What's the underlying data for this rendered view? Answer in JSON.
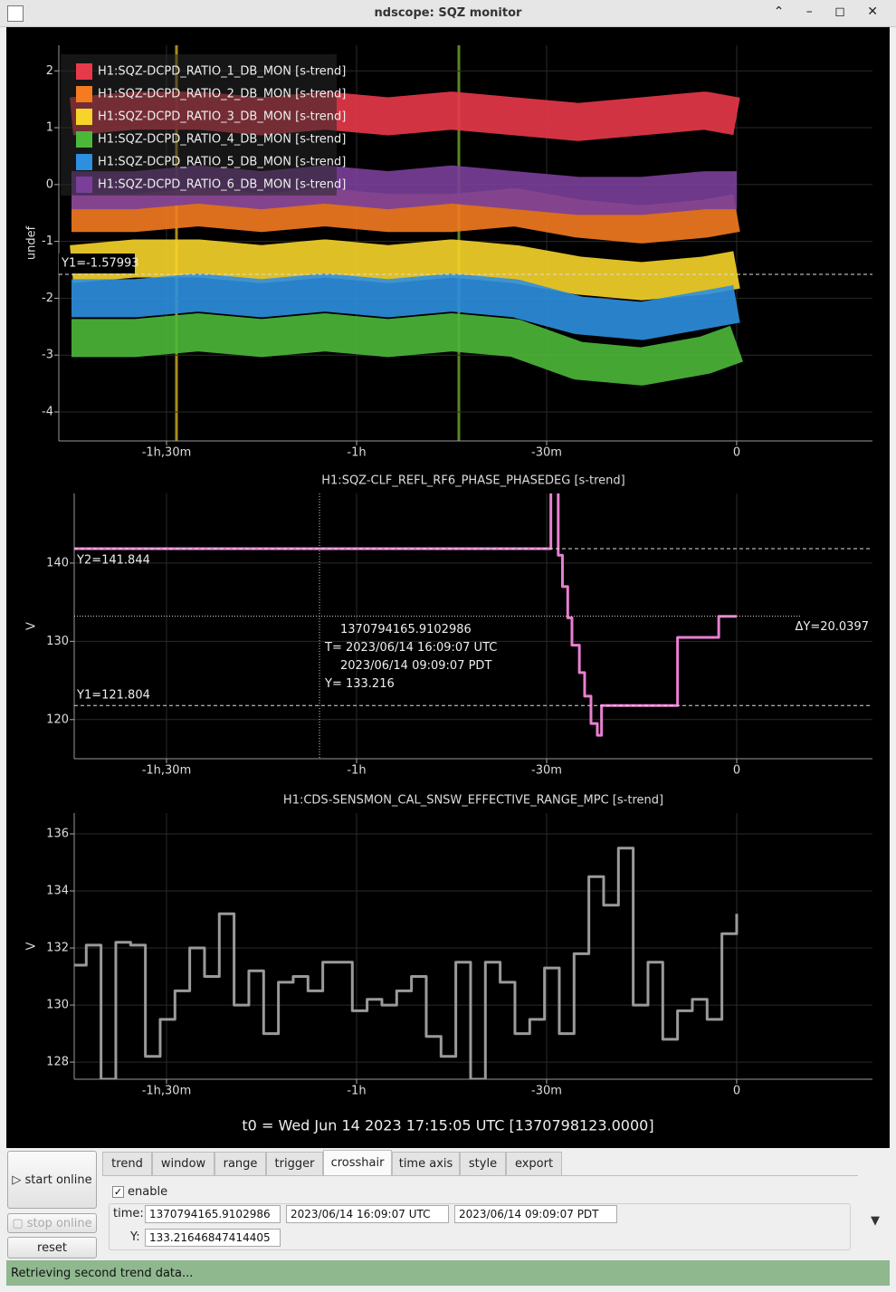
{
  "window": {
    "title": "ndscope: SQZ monitor"
  },
  "chart_data": [
    {
      "type": "line",
      "ylabel": "undef",
      "xlim": [
        -6420,
        1286
      ],
      "ylim": [
        -4.51,
        2.45
      ],
      "xticks": [
        {
          "value": -5400,
          "label": "-1h,30m"
        },
        {
          "value": -3600,
          "label": "-1h"
        },
        {
          "value": -1800,
          "label": "-30m"
        },
        0
      ],
      "yticks": [
        -4,
        -3,
        -2,
        -1,
        0,
        1,
        2
      ],
      "grid": true,
      "legend": "top-left",
      "x": [
        -6300,
        -5700,
        -5100,
        -4500,
        -3900,
        -3300,
        -2700,
        -2100,
        -1500,
        -900,
        -300,
        0
      ],
      "series": [
        {
          "name": "H1:SQZ-DCPD_RATIO_1_DB_MON [s-trend]",
          "color": "#e8394a",
          "values": [
            1.2,
            1.3,
            1.3,
            1.2,
            1.3,
            1.2,
            1.3,
            1.2,
            1.1,
            1.2,
            1.3,
            1.2
          ]
        },
        {
          "name": "H1:SQZ-DCPD_RATIO_2_DB_MON [s-trend]",
          "color": "#f47b20",
          "values": [
            -0.5,
            -0.5,
            -0.4,
            -0.5,
            -0.4,
            -0.5,
            -0.5,
            -0.4,
            -0.6,
            -0.7,
            -0.6,
            -0.5
          ]
        },
        {
          "name": "H1:SQZ-DCPD_RATIO_3_DB_MON [s-trend]",
          "color": "#f7d42a",
          "values": [
            -1.4,
            -1.3,
            -1.3,
            -1.4,
            -1.3,
            -1.4,
            -1.3,
            -1.4,
            -1.6,
            -1.7,
            -1.6,
            -1.5
          ]
        },
        {
          "name": "H1:SQZ-DCPD_RATIO_4_DB_MON [s-trend]",
          "color": "#4cb83a",
          "values": [
            -2.7,
            -2.7,
            -2.6,
            -2.7,
            -2.6,
            -2.7,
            -2.6,
            -2.7,
            -3.1,
            -3.2,
            -3.0,
            -2.8
          ]
        },
        {
          "name": "H1:SQZ-DCPD_RATIO_5_DB_MON [s-trend]",
          "color": "#2d8fe0",
          "values": [
            -2.0,
            -2.0,
            -1.9,
            -2.0,
            -1.9,
            -2.0,
            -1.9,
            -2.0,
            -2.3,
            -2.4,
            -2.2,
            -2.1
          ]
        },
        {
          "name": "H1:SQZ-DCPD_RATIO_6_DB_MON [s-trend]",
          "color": "#7a3f9a",
          "values": [
            -0.1,
            -0.1,
            0.0,
            -0.1,
            0.0,
            -0.1,
            0.0,
            -0.1,
            -0.2,
            -0.2,
            -0.1,
            -0.1
          ]
        }
      ],
      "cursors": [
        {
          "label": "Y1=-1.57993",
          "y": -1.57993
        }
      ]
    },
    {
      "type": "line",
      "title": "H1:SQZ-CLF_REFL_RF6_PHASE_PHASEDEG [s-trend]",
      "ylabel": "V",
      "xlim": [
        -6274,
        1286
      ],
      "ylim": [
        115.0,
        148.9
      ],
      "xticks": [
        {
          "value": -5400,
          "label": "-1h,30m"
        },
        {
          "value": -3600,
          "label": "-1h"
        },
        {
          "value": -1800,
          "label": "-30m"
        },
        0
      ],
      "yticks": [
        120,
        130,
        140
      ],
      "grid": true,
      "step": true,
      "x": [
        -6300,
        -1760,
        -1720,
        -1690,
        -1650,
        -1600,
        -1560,
        -1490,
        -1440,
        -1380,
        -1320,
        -1280,
        -560,
        -170,
        0
      ],
      "series": [
        {
          "name": "H1:SQZ-CLF_REFL_RF6_PHASE_PHASEDEG [s-trend]",
          "color": "#e87fd0",
          "values": [
            141.844,
            152,
            150,
            141,
            137,
            133,
            129.5,
            126,
            123,
            119.5,
            118,
            121.8,
            130.5,
            133.2,
            133.2
          ]
        }
      ],
      "cursors": [
        {
          "label": "Y2=141.844",
          "y": 141.844
        },
        {
          "label": "Y1=121.804",
          "y": 121.804
        }
      ],
      "delta": "ΔY=20.0397",
      "crosshair": {
        "x": -3951,
        "y": 133.216,
        "lines": [
          "1370794165.9102986",
          "T= 2023/06/14 16:09:07 UTC",
          "2023/06/14 09:09:07 PDT",
          "Y= 133.216"
        ]
      }
    },
    {
      "type": "line",
      "title": "H1:CDS-SENSMON_CAL_SNSW_EFFECTIVE_RANGE_MPC [s-trend]",
      "ylabel": "V",
      "xlim": [
        -6274,
        1286
      ],
      "ylim": [
        127.4,
        136.73
      ],
      "xticks": [
        {
          "value": -5400,
          "label": "-1h,30m"
        },
        {
          "value": -3600,
          "label": "-1h"
        },
        {
          "value": -1800,
          "label": "-30m"
        },
        0
      ],
      "yticks": [
        128,
        130,
        132,
        134,
        136
      ],
      "grid": true,
      "step": true,
      "x": [
        -6300,
        -6160,
        -6020,
        -5880,
        -5740,
        -5600,
        -5460,
        -5320,
        -5180,
        -5040,
        -4900,
        -4760,
        -4620,
        -4480,
        -4340,
        -4200,
        -4060,
        -3920,
        -3780,
        -3640,
        -3500,
        -3360,
        -3220,
        -3080,
        -2940,
        -2800,
        -2660,
        -2520,
        -2380,
        -2240,
        -2100,
        -1960,
        -1820,
        -1680,
        -1540,
        -1400,
        -1260,
        -1120,
        -980,
        -840,
        -700,
        -560,
        -420,
        -280,
        -140,
        0
      ],
      "series": [
        {
          "name": "H1:CDS-SENSMON_CAL_SNSW_EFFECTIVE_RANGE_MPC [s-trend]",
          "color": "#9a9a9a",
          "values": [
            131.4,
            132.1,
            127.4,
            132.2,
            132.1,
            128.2,
            129.5,
            130.5,
            132.0,
            131.0,
            133.2,
            130.0,
            131.2,
            129.0,
            130.8,
            131.0,
            130.5,
            131.5,
            131.5,
            129.8,
            130.2,
            130.0,
            130.5,
            131.0,
            128.9,
            128.2,
            131.5,
            127.4,
            131.5,
            130.8,
            129.0,
            129.5,
            131.3,
            129.0,
            131.8,
            134.5,
            133.5,
            135.5,
            130.0,
            131.5,
            128.8,
            129.8,
            130.2,
            129.5,
            132.5,
            133.2
          ]
        }
      ]
    }
  ],
  "t0": "t0 = Wed Jun 14 2023 17:15:05 UTC [1370798123.0000]",
  "controls": {
    "buttons": [
      "start online",
      "stop online",
      "reset"
    ],
    "tabs": [
      "trend",
      "window",
      "range",
      "trigger",
      "crosshair",
      "time axis",
      "style",
      "export"
    ],
    "enable": "enable",
    "time_label": "time:",
    "time_fields": [
      "1370794165.9102986",
      "2023/06/14 16:09:07 UTC",
      "2023/06/14 09:09:07 PDT"
    ],
    "y_label": "Y:",
    "y_field": "133.21646847414405"
  },
  "status": "Retrieving second trend data..."
}
